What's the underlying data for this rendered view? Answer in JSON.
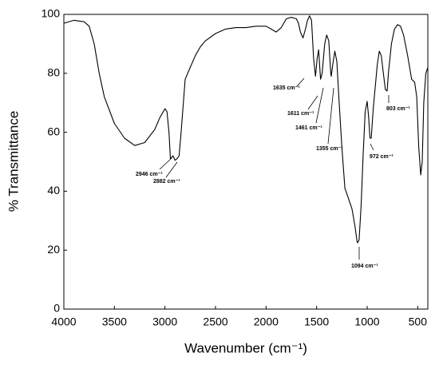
{
  "chart_data": {
    "type": "line",
    "xlabel": "Wavenumber (cm⁻¹)",
    "ylabel": "% Transmittance",
    "x": [
      4000,
      3900,
      3800,
      3750,
      3700,
      3650,
      3600,
      3500,
      3400,
      3300,
      3200,
      3100,
      3050,
      3000,
      2980,
      2960,
      2946,
      2920,
      2900,
      2882,
      2860,
      2840,
      2800,
      2750,
      2700,
      2650,
      2600,
      2500,
      2400,
      2300,
      2200,
      2100,
      2000,
      1950,
      1900,
      1850,
      1800,
      1750,
      1700,
      1680,
      1660,
      1635,
      1610,
      1590,
      1570,
      1550,
      1530,
      1511,
      1495,
      1480,
      1461,
      1445,
      1420,
      1400,
      1380,
      1360,
      1355,
      1340,
      1320,
      1300,
      1280,
      1250,
      1220,
      1200,
      1150,
      1120,
      1100,
      1094,
      1080,
      1060,
      1040,
      1020,
      1000,
      985,
      972,
      960,
      940,
      900,
      880,
      860,
      840,
      820,
      803,
      790,
      760,
      730,
      700,
      670,
      640,
      600,
      560,
      530,
      510,
      490,
      470,
      455,
      440,
      420,
      400
    ],
    "values": [
      97,
      98,
      97.5,
      96,
      90,
      80,
      72,
      63,
      58,
      55.5,
      56.5,
      61,
      65,
      68,
      67,
      60,
      51,
      52,
      50.5,
      51,
      52,
      60,
      78,
      82,
      86,
      89,
      91,
      93.5,
      95,
      95.5,
      95.5,
      96,
      96,
      95,
      94,
      95.5,
      98.5,
      99,
      98.5,
      97,
      94,
      92,
      95,
      98,
      99.5,
      98,
      85,
      79,
      85,
      88,
      78,
      80,
      90,
      93,
      91,
      80,
      79,
      83,
      87.5,
      84,
      72,
      55,
      41,
      39,
      34,
      28,
      23,
      22.5,
      23.5,
      35,
      52,
      67,
      70.5,
      65,
      58,
      58,
      68,
      83,
      87.5,
      86,
      80,
      74.5,
      74,
      80,
      90,
      95,
      96.5,
      96,
      93,
      86,
      78,
      77,
      72,
      55,
      45.5,
      50,
      70,
      80,
      82
    ],
    "color": "#000000",
    "xlim": [
      4000,
      400
    ],
    "xticks": [
      4000,
      3500,
      3000,
      2500,
      2000,
      1500,
      1000,
      500
    ],
    "ylim": [
      0,
      100
    ],
    "yticks": [
      0,
      20,
      40,
      60,
      80,
      100
    ],
    "annotations": [
      "2946 cm⁻¹",
      "2882 cm⁻¹",
      "1635 cm⁻¹",
      "1611 cm⁻¹",
      "1461 cm⁻¹",
      "1355 cm⁻¹",
      "1094 cm⁻¹",
      "972 cm⁻¹",
      "803 cm⁻¹"
    ]
  }
}
